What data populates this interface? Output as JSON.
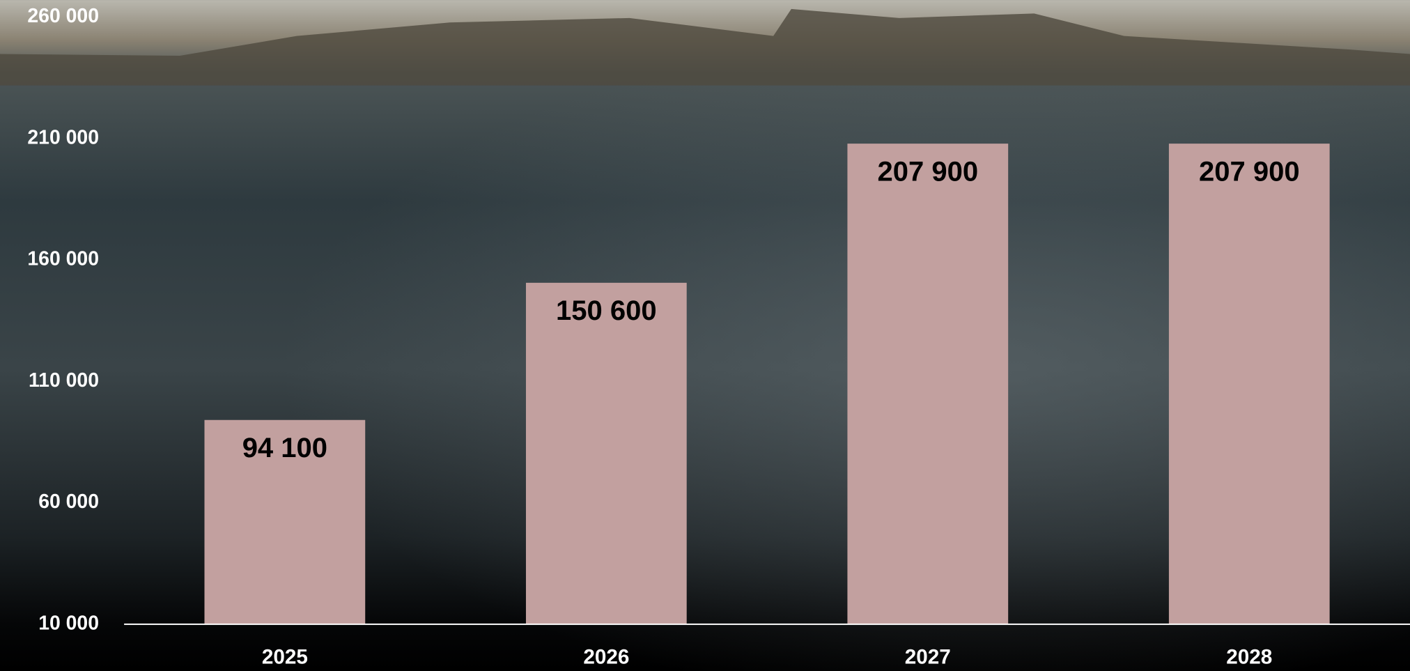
{
  "chart_data": {
    "type": "bar",
    "categories": [
      "2025",
      "2026",
      "2027",
      "2028"
    ],
    "values": [
      94100,
      150600,
      207900,
      207900
    ],
    "value_labels": [
      "94 100",
      "150 600",
      "207 900",
      "207 900"
    ],
    "color": "#c2a09f",
    "ylim": [
      10000,
      260000
    ],
    "yticks": [
      {
        "value": 10000,
        "label": "10 000"
      },
      {
        "value": 60000,
        "label": "60 000"
      },
      {
        "value": 110000,
        "label": "110 000"
      },
      {
        "value": 160000,
        "label": "160 000"
      },
      {
        "value": 210000,
        "label": "210 000"
      },
      {
        "value": 260000,
        "label": "260 000"
      }
    ],
    "grid": false
  }
}
